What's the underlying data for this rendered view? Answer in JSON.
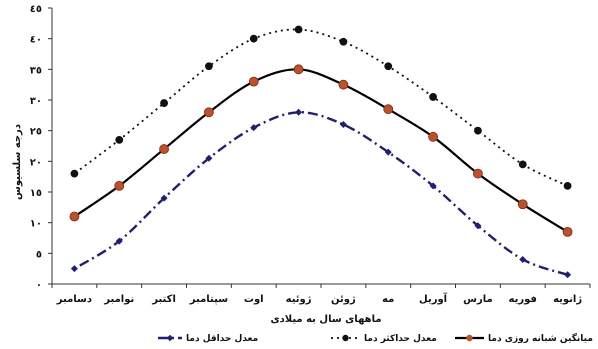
{
  "chart_data": {
    "type": "line",
    "xlabel": "ماههای سال به میلادی",
    "ylabel": "درجه سلسیوس",
    "ylim": [
      0,
      45
    ],
    "yticks": [
      0,
      5,
      10,
      15,
      20,
      25,
      30,
      35,
      40,
      45
    ],
    "ytick_labels": [
      "٠",
      "٥",
      "١٠",
      "١٥",
      "٢٠",
      "٢٥",
      "٣٠",
      "٣٥",
      "٤٠",
      "٤٥"
    ],
    "x_order": "right-to-left",
    "categories": [
      "ژانویه",
      "فوریه",
      "مارس",
      "آوریل",
      "مه",
      "ژوئن",
      "ژوئیه",
      "اوت",
      "سپتامبر",
      "اکتبر",
      "نوامبر",
      "دسامبر"
    ],
    "grid": false,
    "legend_position": "bottom",
    "series": [
      {
        "name": "میانگین شبانه روزی دما",
        "style": "solid",
        "marker": "circle",
        "color": "#000000",
        "marker_color": "#c0502a",
        "values": [
          8.5,
          13,
          18,
          24,
          28.5,
          32.5,
          35,
          33,
          28,
          22,
          16,
          11
        ]
      },
      {
        "name": "معدل حداکثر دما",
        "style": "dotted",
        "marker": "circle",
        "color": "#111111",
        "marker_color": "#111111",
        "values": [
          16,
          19.5,
          25,
          30.5,
          35.5,
          39.5,
          41.5,
          40,
          35.5,
          29.5,
          23.5,
          18
        ]
      },
      {
        "name": "معدل حداقل دما",
        "style": "dash-dot",
        "marker": "diamond",
        "color": "#1f1f7a",
        "marker_color": "#1f1f7a",
        "values": [
          1.5,
          4,
          9.5,
          16,
          21.5,
          26,
          28,
          25.5,
          20.5,
          14,
          7,
          2.5
        ]
      }
    ]
  }
}
